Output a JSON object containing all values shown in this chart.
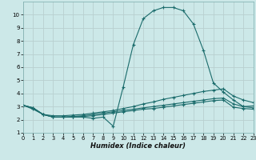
{
  "xlabel": "Humidex (Indice chaleur)",
  "bg_color": "#cce8e8",
  "grid_color": "#b8d0d0",
  "line_color": "#1a6b6b",
  "xlim": [
    0,
    23
  ],
  "ylim": [
    1,
    11
  ],
  "xticks": [
    0,
    1,
    2,
    3,
    4,
    5,
    6,
    7,
    8,
    9,
    10,
    11,
    12,
    13,
    14,
    15,
    16,
    17,
    18,
    19,
    20,
    21,
    22,
    23
  ],
  "yticks": [
    1,
    2,
    3,
    4,
    5,
    6,
    7,
    8,
    9,
    10
  ],
  "series": [
    {
      "x": [
        0,
        1,
        2,
        3,
        4,
        5,
        6,
        7,
        8,
        9,
        10,
        11,
        12,
        13,
        14,
        15,
        16,
        17,
        18,
        19,
        20,
        21,
        22,
        23
      ],
      "y": [
        3.1,
        2.8,
        2.4,
        2.2,
        2.2,
        2.2,
        2.2,
        2.1,
        2.2,
        1.5,
        4.5,
        7.7,
        9.7,
        10.3,
        10.55,
        10.55,
        10.3,
        9.3,
        7.3,
        4.8,
        4.1,
        3.5,
        3.0,
        3.05
      ]
    },
    {
      "x": [
        0,
        1,
        2,
        3,
        4,
        5,
        6,
        7,
        8,
        9,
        10,
        11,
        12,
        13,
        14,
        15,
        16,
        17,
        18,
        19,
        20,
        21,
        22,
        23
      ],
      "y": [
        3.1,
        2.9,
        2.4,
        2.3,
        2.3,
        2.35,
        2.4,
        2.5,
        2.6,
        2.7,
        2.85,
        3.0,
        3.2,
        3.35,
        3.55,
        3.7,
        3.85,
        4.0,
        4.15,
        4.25,
        4.35,
        3.8,
        3.5,
        3.3
      ]
    },
    {
      "x": [
        0,
        1,
        2,
        3,
        4,
        5,
        6,
        7,
        8,
        9,
        10,
        11,
        12,
        13,
        14,
        15,
        16,
        17,
        18,
        19,
        20,
        21,
        22,
        23
      ],
      "y": [
        3.1,
        2.9,
        2.4,
        2.2,
        2.2,
        2.25,
        2.3,
        2.4,
        2.5,
        2.6,
        2.7,
        2.8,
        2.9,
        3.0,
        3.1,
        3.2,
        3.3,
        3.4,
        3.5,
        3.6,
        3.65,
        3.2,
        3.0,
        2.9
      ]
    },
    {
      "x": [
        0,
        1,
        2,
        3,
        4,
        5,
        6,
        7,
        8,
        9,
        10,
        11,
        12,
        13,
        14,
        15,
        16,
        17,
        18,
        19,
        20,
        21,
        22,
        23
      ],
      "y": [
        3.1,
        2.9,
        2.4,
        2.2,
        2.2,
        2.2,
        2.25,
        2.3,
        2.4,
        2.5,
        2.6,
        2.7,
        2.8,
        2.85,
        2.95,
        3.05,
        3.15,
        3.25,
        3.35,
        3.45,
        3.5,
        2.95,
        2.85,
        2.8
      ]
    }
  ]
}
